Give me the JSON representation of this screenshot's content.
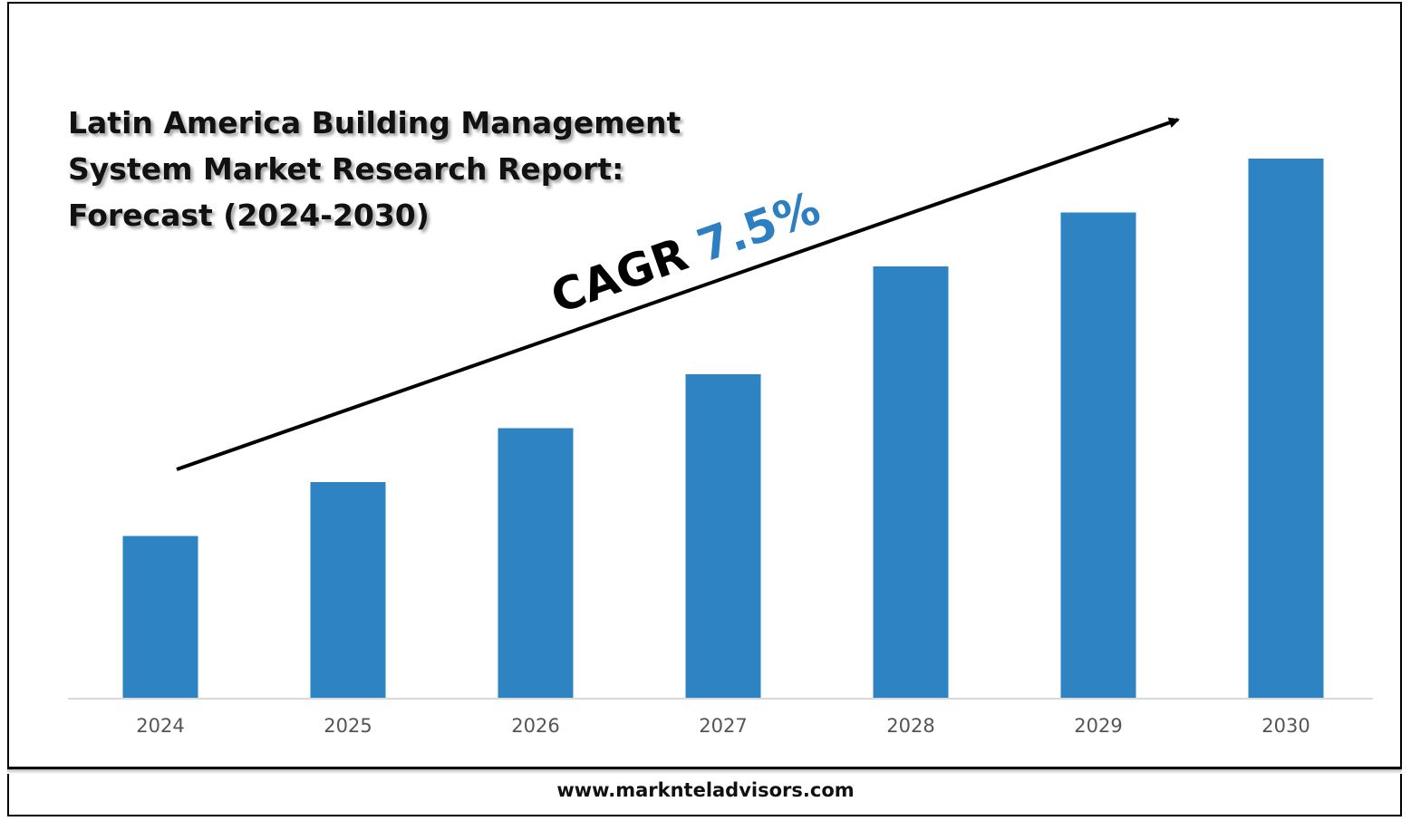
{
  "chart_data": {
    "type": "bar",
    "title_lines": [
      "Latin America Building Management",
      "System Market Research Report:",
      "Forecast (2024-2030)"
    ],
    "categories": [
      "2024",
      "2025",
      "2026",
      "2027",
      "2028",
      "2029",
      "2030"
    ],
    "values": [
      30,
      40,
      50,
      60,
      80,
      90,
      100
    ],
    "ylim": [
      0,
      110
    ],
    "grid": false,
    "annotation": {
      "label": "CAGR",
      "value": "7.5%"
    },
    "bar_color": "#2E83C3",
    "accent_color": "#2E7FC1"
  },
  "footer": {
    "website": "www.marknteladvisors.com"
  }
}
